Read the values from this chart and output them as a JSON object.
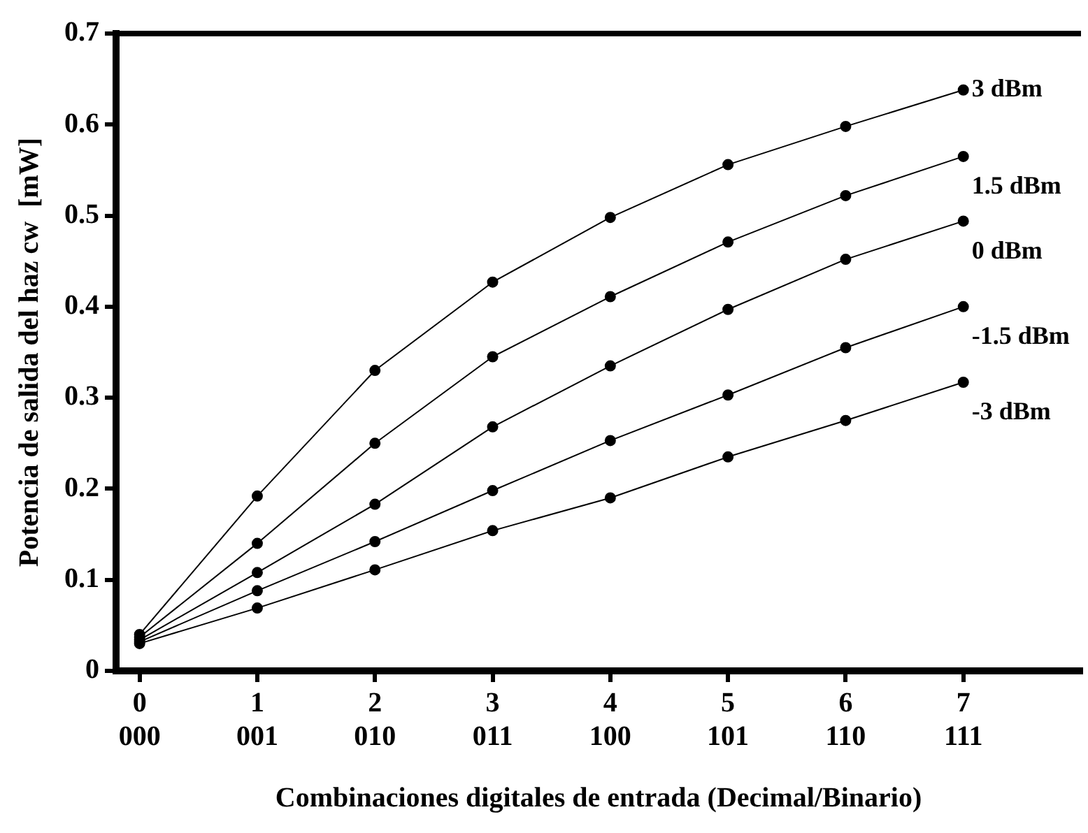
{
  "chart_data": {
    "type": "line",
    "xlabel": "Combinaciones digitales de entrada (Decimal/Binario)",
    "ylabel": "Potencia de salida del haz cw  [mW]",
    "categories": [
      "0\n000",
      "1\n001",
      "2\n010",
      "3\n011",
      "4\n100",
      "5\n101",
      "6\n110",
      "7\n111"
    ],
    "ylim": [
      0,
      0.7
    ],
    "yticks": [
      0,
      0.1,
      0.2,
      0.3,
      0.4,
      0.5,
      0.6,
      0.7
    ],
    "series": [
      {
        "name": "3 dBm",
        "color": "#000000",
        "values": [
          0.04,
          0.192,
          0.33,
          0.427,
          0.498,
          0.556,
          0.598,
          0.638
        ]
      },
      {
        "name": "1.5 dBm",
        "color": "#000000",
        "values": [
          0.037,
          0.14,
          0.25,
          0.345,
          0.411,
          0.471,
          0.522,
          0.565
        ]
      },
      {
        "name": "0 dBm",
        "color": "#000000",
        "values": [
          0.034,
          0.108,
          0.183,
          0.268,
          0.335,
          0.397,
          0.452,
          0.494
        ]
      },
      {
        "name": "-1.5 dBm",
        "color": "#000000",
        "values": [
          0.032,
          0.088,
          0.142,
          0.198,
          0.253,
          0.303,
          0.355,
          0.4
        ]
      },
      {
        "name": "-3 dBm",
        "color": "#000000",
        "values": [
          0.03,
          0.069,
          0.111,
          0.154,
          0.19,
          0.235,
          0.275,
          0.317
        ]
      }
    ],
    "marker": "circle",
    "line_style": "solid",
    "grid": false,
    "legend": false
  }
}
